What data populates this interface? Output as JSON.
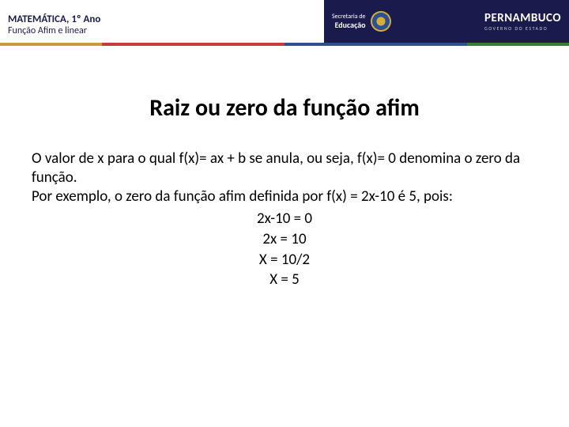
{
  "header": {
    "subject": "MATEMÁTICA, 1º Ano",
    "topic": "Função Afim e linear",
    "secretaria_l1": "Secretaria de",
    "secretaria_l2": "Educação",
    "state_title": "PERNAMBUCO",
    "state_sub": "GOVERNO DO ESTADO"
  },
  "content": {
    "title": "Raiz ou zero da função afim",
    "para1": "O valor de x para o qual f(x)= ax + b se anula, ou seja, f(x)= 0 denomina o zero da função.",
    "para2": "Por exemplo, o zero da função afim definida por f(x) = 2x-10 é 5, pois:",
    "eq1": "2x-10 = 0",
    "eq2": "2x = 10",
    "eq3": "X = 10/2",
    "eq4": "X = 5"
  }
}
